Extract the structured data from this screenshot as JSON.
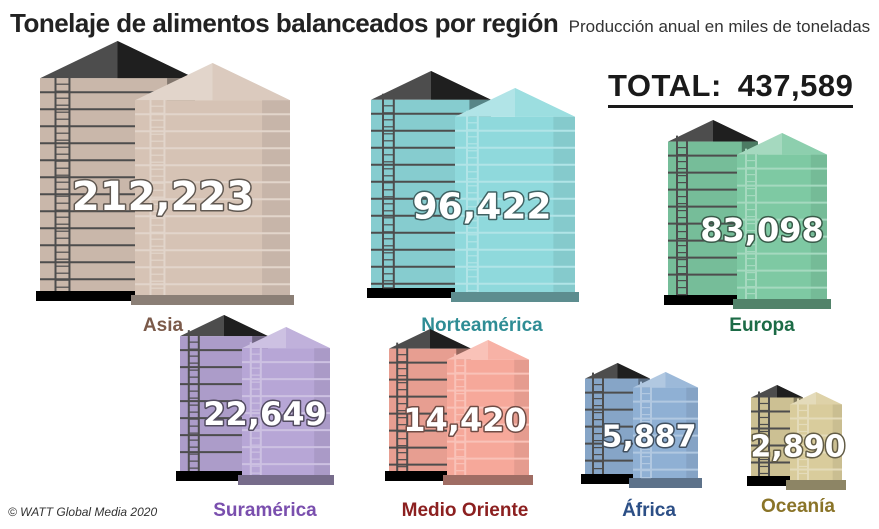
{
  "title": "Tonelaje de alimentos balanceados por región",
  "subtitle": "Producción anual en miles de toneladas",
  "total_label": "TOTAL:",
  "total_value": "437,589",
  "copyright": "© WATT Global Media 2020",
  "chart_data": {
    "type": "bar",
    "title": "Tonelaje de alimentos balanceados por región",
    "subtitle": "Producción anual en miles de toneladas",
    "categories": [
      "Asia",
      "Norteamérica",
      "Europa",
      "Suramérica",
      "Medio Oriente",
      "África",
      "Oceanía"
    ],
    "values": [
      212223,
      96422,
      83098,
      22649,
      14420,
      5887,
      2890
    ],
    "value_labels": [
      "212,223",
      "96,422",
      "83,098",
      "22,649",
      "14,420",
      "5,887",
      "2,890"
    ],
    "colors": [
      "#d6c3b5",
      "#8fd9dc",
      "#7ec9a3",
      "#b7a6d6",
      "#f6a89a",
      "#8fb0d4",
      "#d9cc9c"
    ],
    "label_colors": [
      "#7b5a4a",
      "#2f8d95",
      "#1c6b46",
      "#7a4fae",
      "#8c2020",
      "#2c4f86",
      "#8a7428"
    ]
  }
}
